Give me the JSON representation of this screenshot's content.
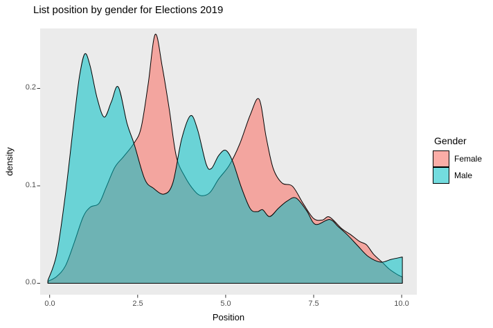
{
  "title": "List position by gender for Elections 2019",
  "chart_data": {
    "type": "area",
    "subtype": "density",
    "title": "List position by gender for Elections 2019",
    "xlabel": "Position",
    "ylabel": "density",
    "x_ticks": [
      0.0,
      2.5,
      5.0,
      7.5,
      10.0
    ],
    "x_tick_labels": [
      "0.0",
      "2.5",
      "5.0",
      "7.5",
      "10.0"
    ],
    "y_ticks": [
      0.0,
      0.1,
      0.2
    ],
    "y_tick_labels": [
      "0.0",
      "0.1",
      "0.2"
    ],
    "xlim": [
      -0.27,
      10.43
    ],
    "ylim": [
      -0.012,
      0.262
    ],
    "grid": "off",
    "panel_background": "#EBEBEB",
    "tick_color": "#333333",
    "tick_label_color": "#4d4d4d",
    "outline_color": "#000000",
    "legend": {
      "title": "Gender",
      "position": "right",
      "entries": [
        {
          "label": "Female",
          "color": "#F8766D",
          "fill": "rgba(248,118,109,0.6)"
        },
        {
          "label": "Male",
          "color": "#00BFC4",
          "fill": "rgba(0,191,196,0.55)"
        }
      ]
    },
    "series": [
      {
        "name": "Female",
        "fill": "rgba(248,118,109,0.6)",
        "points": [
          [
            -0.05,
            0.002
          ],
          [
            0.2,
            0.007
          ],
          [
            0.45,
            0.018
          ],
          [
            0.7,
            0.042
          ],
          [
            0.95,
            0.068
          ],
          [
            1.15,
            0.078
          ],
          [
            1.4,
            0.082
          ],
          [
            1.6,
            0.098
          ],
          [
            1.85,
            0.119
          ],
          [
            2.1,
            0.13
          ],
          [
            2.4,
            0.144
          ],
          [
            2.6,
            0.16
          ],
          [
            2.8,
            0.205
          ],
          [
            3.0,
            0.2555
          ],
          [
            3.2,
            0.222
          ],
          [
            3.4,
            0.178
          ],
          [
            3.6,
            0.13
          ],
          [
            3.85,
            0.109
          ],
          [
            4.1,
            0.0955
          ],
          [
            4.3,
            0.09
          ],
          [
            4.55,
            0.093
          ],
          [
            4.8,
            0.107
          ],
          [
            5.1,
            0.121
          ],
          [
            5.4,
            0.143
          ],
          [
            5.7,
            0.173
          ],
          [
            5.95,
            0.189
          ],
          [
            6.15,
            0.15
          ],
          [
            6.35,
            0.118
          ],
          [
            6.6,
            0.103
          ],
          [
            6.9,
            0.0995
          ],
          [
            7.2,
            0.082
          ],
          [
            7.5,
            0.0665
          ],
          [
            7.75,
            0.065
          ],
          [
            7.95,
            0.068
          ],
          [
            8.3,
            0.056
          ],
          [
            8.55,
            0.05
          ],
          [
            8.8,
            0.043
          ],
          [
            9.0,
            0.0395
          ],
          [
            9.2,
            0.03
          ],
          [
            9.45,
            0.0215
          ],
          [
            9.65,
            0.0145
          ],
          [
            9.9,
            0.0085
          ],
          [
            10.02,
            0.0065
          ]
        ]
      },
      {
        "name": "Male",
        "fill": "rgba(0,191,196,0.55)",
        "points": [
          [
            -0.05,
            0.003
          ],
          [
            0.2,
            0.03
          ],
          [
            0.45,
            0.092
          ],
          [
            0.7,
            0.17
          ],
          [
            0.85,
            0.213
          ],
          [
            1.0,
            0.2355
          ],
          [
            1.15,
            0.223
          ],
          [
            1.35,
            0.19
          ],
          [
            1.55,
            0.1705
          ],
          [
            1.75,
            0.186
          ],
          [
            1.95,
            0.2015
          ],
          [
            2.2,
            0.164
          ],
          [
            2.4,
            0.143
          ],
          [
            2.7,
            0.107
          ],
          [
            2.95,
            0.0975
          ],
          [
            3.25,
            0.0915
          ],
          [
            3.5,
            0.103
          ],
          [
            3.75,
            0.148
          ],
          [
            4.0,
            0.172
          ],
          [
            4.2,
            0.158
          ],
          [
            4.45,
            0.122
          ],
          [
            4.6,
            0.118
          ],
          [
            4.8,
            0.131
          ],
          [
            5.0,
            0.1365
          ],
          [
            5.2,
            0.125
          ],
          [
            5.45,
            0.098
          ],
          [
            5.7,
            0.0765
          ],
          [
            5.9,
            0.0735
          ],
          [
            6.05,
            0.0755
          ],
          [
            6.25,
            0.0685
          ],
          [
            6.5,
            0.077
          ],
          [
            6.75,
            0.0845
          ],
          [
            7.0,
            0.0875
          ],
          [
            7.3,
            0.0745
          ],
          [
            7.55,
            0.0605
          ],
          [
            7.95,
            0.0655
          ],
          [
            8.2,
            0.058
          ],
          [
            8.45,
            0.05
          ],
          [
            8.75,
            0.0385
          ],
          [
            9.05,
            0.0275
          ],
          [
            9.4,
            0.0217
          ],
          [
            9.7,
            0.0245
          ],
          [
            10.02,
            0.027
          ]
        ]
      }
    ]
  }
}
